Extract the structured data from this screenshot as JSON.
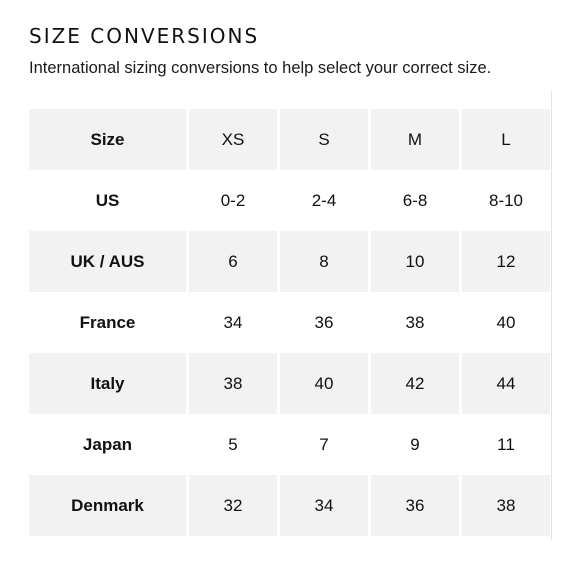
{
  "header": {
    "title": "SIZE CONVERSIONS",
    "subtitle": "International sizing conversions to help select your correct size."
  },
  "table": {
    "rows": [
      {
        "label": "Size",
        "values": [
          "XS",
          "S",
          "M",
          "L"
        ]
      },
      {
        "label": "US",
        "values": [
          "0-2",
          "2-4",
          "6-8",
          "8-10"
        ]
      },
      {
        "label": "UK / AUS",
        "values": [
          "6",
          "8",
          "10",
          "12"
        ]
      },
      {
        "label": "France",
        "values": [
          "34",
          "36",
          "38",
          "40"
        ]
      },
      {
        "label": "Italy",
        "values": [
          "38",
          "40",
          "42",
          "44"
        ]
      },
      {
        "label": "Japan",
        "values": [
          "5",
          "7",
          "9",
          "11"
        ]
      },
      {
        "label": "Denmark",
        "values": [
          "32",
          "34",
          "36",
          "38"
        ]
      }
    ]
  },
  "colors": {
    "shaded_row": "#f2f2f2",
    "text": "#111111"
  }
}
